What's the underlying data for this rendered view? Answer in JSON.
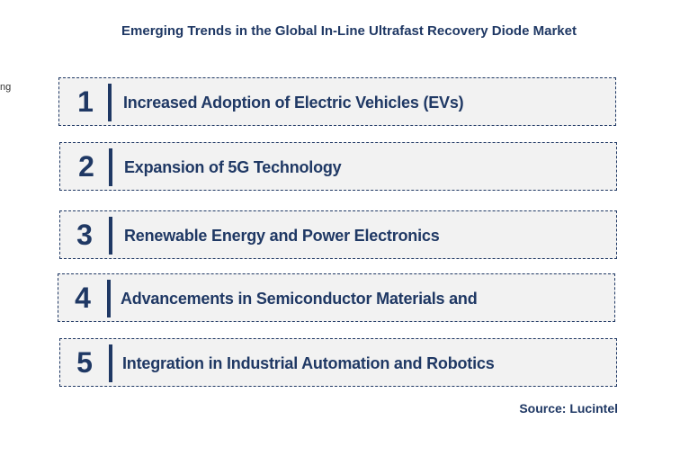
{
  "title": "Emerging Trends in the Global In-Line Ultrafast Recovery Diode Market",
  "edge_fragment": "ng",
  "trends": [
    {
      "number": "1",
      "label": "Increased Adoption of Electric Vehicles (EVs)"
    },
    {
      "number": "2",
      "label": "Expansion of 5G Technology"
    },
    {
      "number": "3",
      "label": "Renewable Energy and Power Electronics"
    },
    {
      "number": "4",
      "label": "Advancements in Semiconductor Materials and"
    },
    {
      "number": "5",
      "label": "Integration in Industrial Automation and Robotics"
    }
  ],
  "source": "Source: Lucintel",
  "colors": {
    "primary": "#1f3864",
    "box_fill": "#f2f2f2"
  }
}
